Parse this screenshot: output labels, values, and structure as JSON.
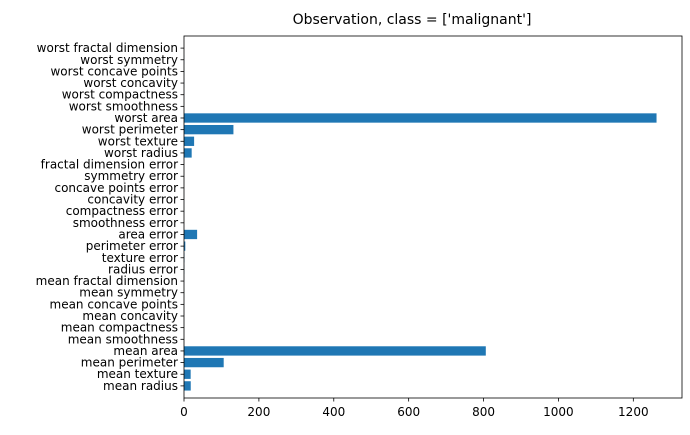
{
  "chart_data": {
    "type": "bar",
    "orientation": "horizontal",
    "title": "Observation, class = ['malignant']",
    "xlabel": "",
    "ylabel": "",
    "xlim": [
      0,
      1330
    ],
    "xticks": [
      0,
      200,
      400,
      600,
      800,
      1000,
      1200
    ],
    "bar_color": "#1f77b4",
    "grid": false,
    "categories": [
      "mean radius",
      "mean texture",
      "mean perimeter",
      "mean area",
      "mean smoothness",
      "mean compactness",
      "mean concavity",
      "mean concave points",
      "mean symmetry",
      "mean fractal dimension",
      "radius error",
      "texture error",
      "perimeter error",
      "area error",
      "smoothness error",
      "compactness error",
      "concavity error",
      "concave points error",
      "symmetry error",
      "fractal dimension error",
      "worst radius",
      "worst texture",
      "worst perimeter",
      "worst area",
      "worst smoothness",
      "worst compactness",
      "worst concavity",
      "worst concave points",
      "worst symmetry",
      "worst fractal dimension"
    ],
    "values": [
      17.99,
      17.77,
      106,
      806,
      0.1,
      0.14,
      0.1,
      0.07,
      0.18,
      0.06,
      0.5,
      1.1,
      3.5,
      35,
      0.006,
      0.025,
      0.03,
      0.012,
      0.02,
      0.004,
      20.5,
      27,
      132,
      1262,
      0.14,
      0.3,
      0.35,
      0.16,
      0.29,
      0.08
    ]
  }
}
